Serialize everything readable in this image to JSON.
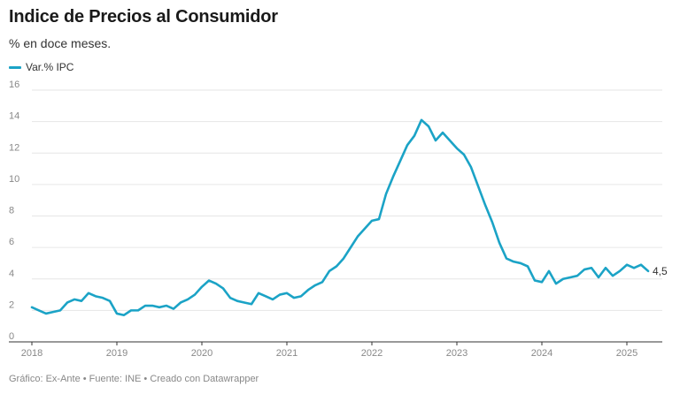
{
  "header": {
    "title": "Indice de Precios al Consumidor",
    "subtitle": "% en doce meses."
  },
  "footer": {
    "text": "Gráfico: Ex-Ante • Fuente: INE • Creado con Datawrapper"
  },
  "colors": {
    "series": "#1ba3c6",
    "grid": "#e6e6e6",
    "axis": "#333333"
  },
  "chart_data": {
    "type": "line",
    "title": "Indice de Precios al Consumidor",
    "subtitle": "% en doce meses.",
    "xlabel": "",
    "ylabel": "",
    "xlim": [
      "2018-01",
      "2025-05"
    ],
    "ylim": [
      0,
      16
    ],
    "y_ticks": [
      "0",
      "2",
      "4",
      "6",
      "8",
      "10",
      "12",
      "14",
      "16"
    ],
    "x_ticks": [
      "2018",
      "2019",
      "2020",
      "2021",
      "2022",
      "2023",
      "2024",
      "2025"
    ],
    "grid": true,
    "legend": "top-left",
    "end_label": "4,5",
    "series": [
      {
        "name": "Var.% IPC",
        "color": "#1ba3c6",
        "points": [
          [
            "2018-01",
            2.2
          ],
          [
            "2018-02",
            2.0
          ],
          [
            "2018-03",
            1.8
          ],
          [
            "2018-04",
            1.9
          ],
          [
            "2018-05",
            2.0
          ],
          [
            "2018-06",
            2.5
          ],
          [
            "2018-07",
            2.7
          ],
          [
            "2018-08",
            2.6
          ],
          [
            "2018-09",
            3.1
          ],
          [
            "2018-10",
            2.9
          ],
          [
            "2018-11",
            2.8
          ],
          [
            "2018-12",
            2.6
          ],
          [
            "2019-01",
            1.8
          ],
          [
            "2019-02",
            1.7
          ],
          [
            "2019-03",
            2.0
          ],
          [
            "2019-04",
            2.0
          ],
          [
            "2019-05",
            2.3
          ],
          [
            "2019-06",
            2.3
          ],
          [
            "2019-07",
            2.2
          ],
          [
            "2019-08",
            2.3
          ],
          [
            "2019-09",
            2.1
          ],
          [
            "2019-10",
            2.5
          ],
          [
            "2019-11",
            2.7
          ],
          [
            "2019-12",
            3.0
          ],
          [
            "2020-01",
            3.5
          ],
          [
            "2020-02",
            3.9
          ],
          [
            "2020-03",
            3.7
          ],
          [
            "2020-04",
            3.4
          ],
          [
            "2020-05",
            2.8
          ],
          [
            "2020-06",
            2.6
          ],
          [
            "2020-07",
            2.5
          ],
          [
            "2020-08",
            2.4
          ],
          [
            "2020-09",
            3.1
          ],
          [
            "2020-10",
            2.9
          ],
          [
            "2020-11",
            2.7
          ],
          [
            "2020-12",
            3.0
          ],
          [
            "2021-01",
            3.1
          ],
          [
            "2021-02",
            2.8
          ],
          [
            "2021-03",
            2.9
          ],
          [
            "2021-04",
            3.3
          ],
          [
            "2021-05",
            3.6
          ],
          [
            "2021-06",
            3.8
          ],
          [
            "2021-07",
            4.5
          ],
          [
            "2021-08",
            4.8
          ],
          [
            "2021-09",
            5.3
          ],
          [
            "2021-10",
            6.0
          ],
          [
            "2021-11",
            6.7
          ],
          [
            "2021-12",
            7.2
          ],
          [
            "2022-01",
            7.7
          ],
          [
            "2022-02",
            7.8
          ],
          [
            "2022-03",
            9.4
          ],
          [
            "2022-04",
            10.5
          ],
          [
            "2022-05",
            11.5
          ],
          [
            "2022-06",
            12.5
          ],
          [
            "2022-07",
            13.1
          ],
          [
            "2022-08",
            14.1
          ],
          [
            "2022-09",
            13.7
          ],
          [
            "2022-10",
            12.8
          ],
          [
            "2022-11",
            13.3
          ],
          [
            "2022-12",
            12.8
          ],
          [
            "2023-01",
            12.3
          ],
          [
            "2023-02",
            11.9
          ],
          [
            "2023-03",
            11.1
          ],
          [
            "2023-04",
            9.9
          ],
          [
            "2023-05",
            8.7
          ],
          [
            "2023-06",
            7.6
          ],
          [
            "2023-07",
            6.3
          ],
          [
            "2023-08",
            5.3
          ],
          [
            "2023-09",
            5.1
          ],
          [
            "2023-10",
            5.0
          ],
          [
            "2023-11",
            4.8
          ],
          [
            "2023-12",
            3.9
          ],
          [
            "2024-01",
            3.8
          ],
          [
            "2024-02",
            4.5
          ],
          [
            "2024-03",
            3.7
          ],
          [
            "2024-04",
            4.0
          ],
          [
            "2024-05",
            4.1
          ],
          [
            "2024-06",
            4.2
          ],
          [
            "2024-07",
            4.6
          ],
          [
            "2024-08",
            4.7
          ],
          [
            "2024-09",
            4.1
          ],
          [
            "2024-10",
            4.7
          ],
          [
            "2024-11",
            4.2
          ],
          [
            "2024-12",
            4.5
          ],
          [
            "2025-01",
            4.9
          ],
          [
            "2025-02",
            4.7
          ],
          [
            "2025-03",
            4.9
          ],
          [
            "2025-04",
            4.5
          ]
        ]
      }
    ]
  }
}
